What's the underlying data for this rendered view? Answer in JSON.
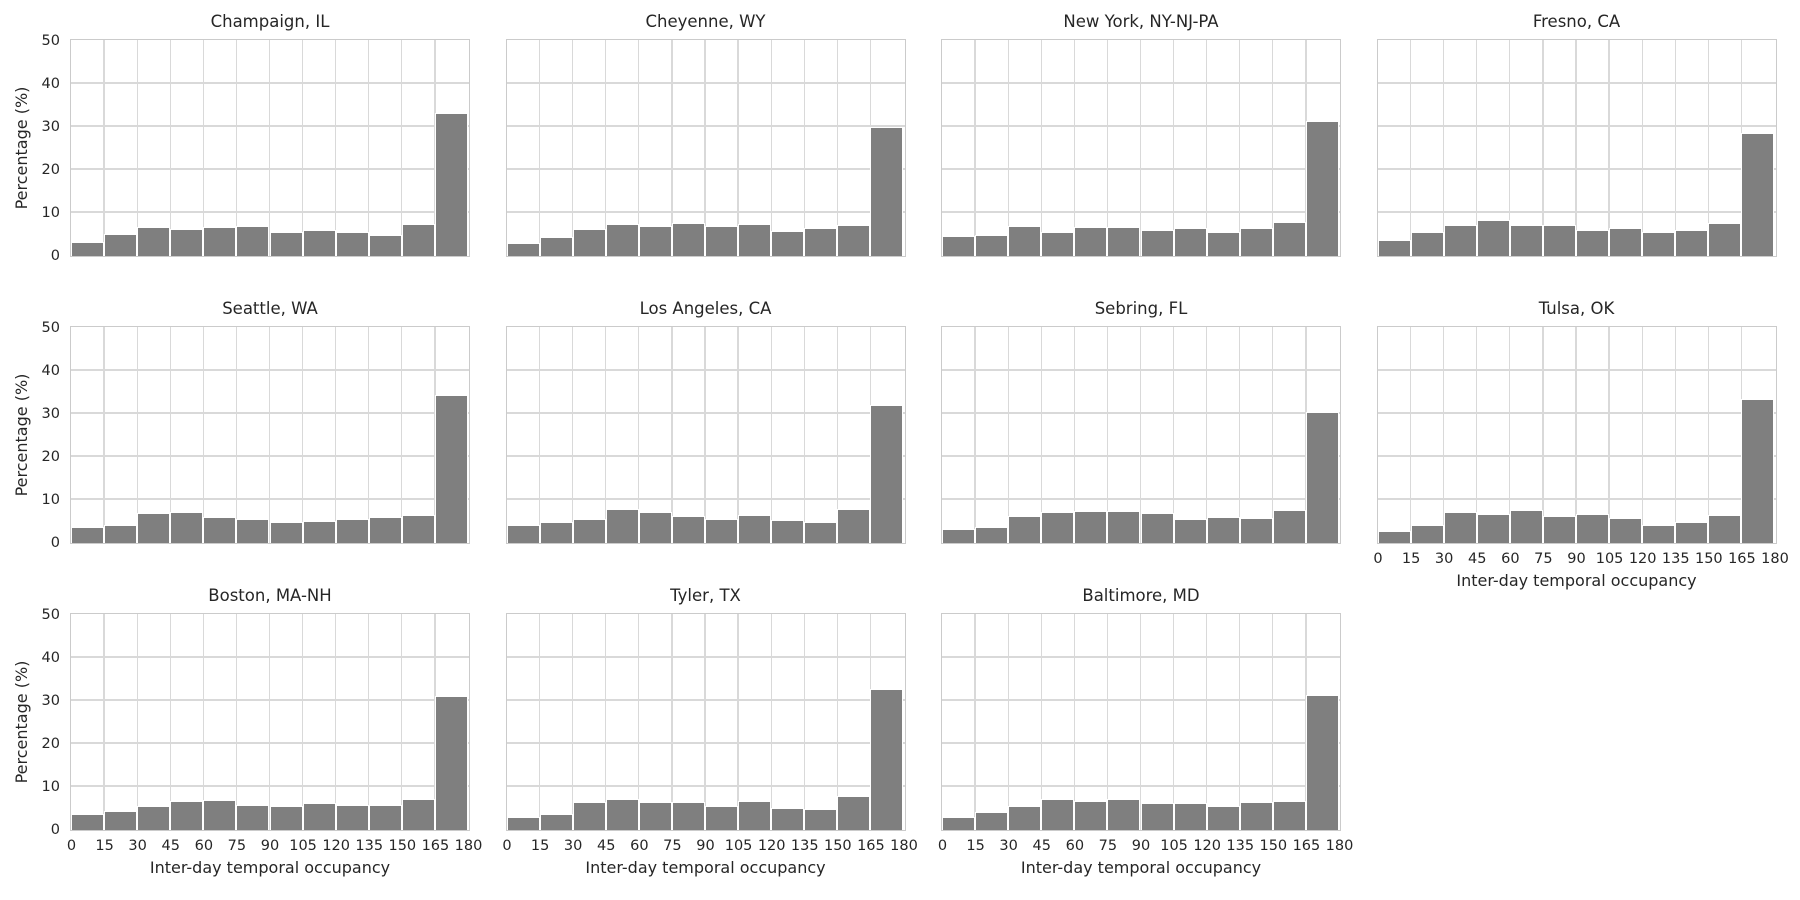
{
  "figure_title": "",
  "chart_data": {
    "type": "bar",
    "subtype": "faceted histogram grid (11 cities)",
    "bin_edges": [
      0,
      15,
      30,
      45,
      60,
      75,
      90,
      105,
      120,
      135,
      150,
      165,
      180
    ],
    "categories": [
      "0-15",
      "15-30",
      "30-45",
      "45-60",
      "60-75",
      "75-90",
      "90-105",
      "105-120",
      "120-135",
      "135-150",
      "150-165",
      "165-180"
    ],
    "series": [
      {
        "name": "Champaign, IL",
        "values": [
          3.2,
          5.1,
          6.8,
          6.3,
          6.8,
          7.0,
          5.5,
          6.1,
          5.5,
          5.0,
          7.5,
          33.2
        ]
      },
      {
        "name": "Cheyenne, WY",
        "values": [
          3.0,
          4.5,
          6.2,
          7.4,
          6.9,
          7.6,
          6.9,
          7.5,
          5.8,
          6.5,
          7.3,
          30.0
        ]
      },
      {
        "name": "New York, NY-NJ-PA",
        "values": [
          4.7,
          4.9,
          6.9,
          5.7,
          6.7,
          6.8,
          6.1,
          6.4,
          5.7,
          6.6,
          7.9,
          31.4
        ]
      },
      {
        "name": "Fresno, CA",
        "values": [
          3.7,
          5.7,
          7.2,
          8.4,
          7.2,
          7.2,
          6.0,
          6.6,
          5.7,
          6.0,
          7.6,
          28.6
        ]
      },
      {
        "name": "Seattle, WA",
        "values": [
          3.8,
          4.3,
          7.0,
          7.2,
          6.1,
          5.6,
          4.9,
          5.1,
          5.5,
          6.0,
          6.5,
          34.5
        ]
      },
      {
        "name": "Los Angeles, CA",
        "values": [
          4.3,
          4.8,
          5.6,
          7.8,
          7.1,
          6.2,
          5.7,
          6.6,
          5.4,
          4.9,
          7.8,
          32.0
        ]
      },
      {
        "name": "Sebring, FL",
        "values": [
          3.2,
          3.7,
          6.3,
          7.1,
          7.4,
          7.4,
          6.9,
          5.6,
          6.0,
          5.9,
          7.7,
          30.5
        ]
      },
      {
        "name": "Tulsa, OK",
        "values": [
          2.9,
          4.2,
          7.2,
          6.7,
          7.7,
          6.2,
          6.8,
          5.8,
          4.2,
          4.8,
          6.5,
          33.5
        ]
      },
      {
        "name": "Boston, MA-NH",
        "values": [
          3.8,
          4.4,
          5.6,
          6.7,
          6.9,
          5.9,
          5.5,
          6.2,
          5.9,
          5.9,
          7.2,
          31.2
        ]
      },
      {
        "name": "Tyler, TX",
        "values": [
          3.1,
          3.7,
          6.4,
          7.2,
          6.4,
          6.4,
          5.6,
          6.7,
          5.2,
          5.0,
          8.0,
          32.8
        ]
      },
      {
        "name": "Baltimore, MD",
        "values": [
          3.1,
          4.1,
          5.6,
          7.3,
          6.7,
          7.3,
          6.3,
          6.2,
          5.6,
          6.6,
          6.7,
          31.3
        ]
      }
    ],
    "xlabel": "Inter-day temporal occupancy",
    "ylabel": "Percentage (%)",
    "xticks": [
      0,
      15,
      30,
      45,
      60,
      75,
      90,
      105,
      120,
      135,
      150,
      165,
      180
    ],
    "yticks": [
      0,
      10,
      20,
      30,
      40,
      50
    ],
    "xlim": [
      0,
      180
    ],
    "ylim": [
      0,
      50
    ],
    "grid": true,
    "legend": false,
    "layout": {
      "rows": 3,
      "cols": 4,
      "shared_x": true,
      "shared_y": true
    },
    "colors": {
      "bar": "#7f7f7f",
      "bar_edge": "#ffffff",
      "grid": "#d9d9d9",
      "spine": "#cbcbcb",
      "text": "#262626",
      "background": "#ffffff"
    }
  }
}
